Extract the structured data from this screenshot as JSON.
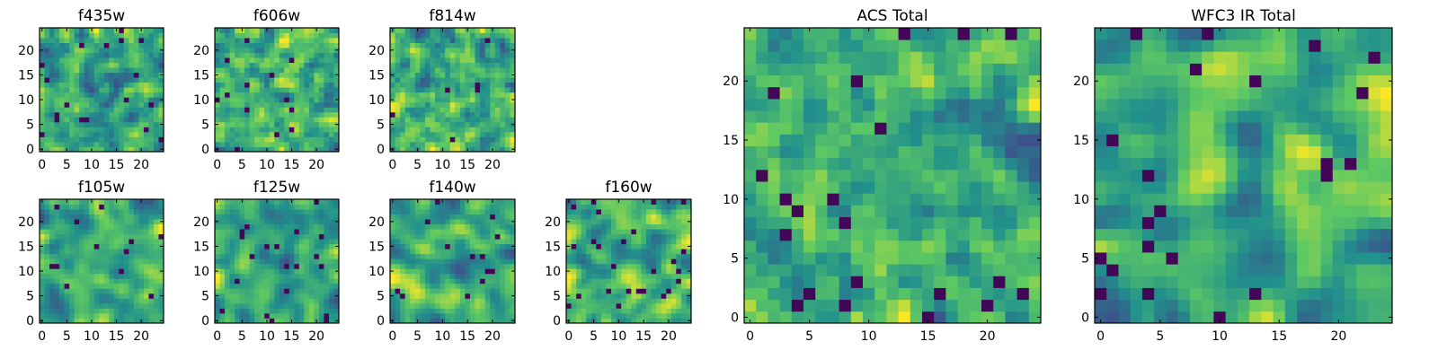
{
  "figure": {
    "colormap": "viridis",
    "colors": [
      "#440154",
      "#3b528b",
      "#21918c",
      "#5ec962",
      "#fde725"
    ],
    "noise_seed": 12345
  },
  "chart_data": [
    {
      "type": "heatmap",
      "title": "f435w",
      "grid": [
        25,
        25
      ],
      "xlim": [
        0,
        25
      ],
      "ylim": [
        0,
        25
      ],
      "xticks": [
        0,
        5,
        10,
        15,
        20
      ],
      "yticks": [
        0,
        5,
        10,
        15,
        20
      ],
      "smoothing": 0.2
    },
    {
      "type": "heatmap",
      "title": "f606w",
      "grid": [
        25,
        25
      ],
      "xlim": [
        0,
        25
      ],
      "ylim": [
        0,
        25
      ],
      "xticks": [
        0,
        5,
        10,
        15,
        20
      ],
      "yticks": [
        0,
        5,
        10,
        15,
        20
      ],
      "smoothing": 0.2
    },
    {
      "type": "heatmap",
      "title": "f814w",
      "grid": [
        25,
        25
      ],
      "xlim": [
        0,
        25
      ],
      "ylim": [
        0,
        25
      ],
      "xticks": [
        0,
        5,
        10,
        15,
        20
      ],
      "yticks": [
        0,
        5,
        10,
        15,
        20
      ],
      "smoothing": 0.2
    },
    {
      "type": "heatmap",
      "title": "f105w",
      "grid": [
        25,
        25
      ],
      "xlim": [
        0,
        25
      ],
      "ylim": [
        0,
        25
      ],
      "xticks": [
        0,
        5,
        10,
        15,
        20
      ],
      "yticks": [
        0,
        5,
        10,
        15,
        20
      ],
      "smoothing": 0.6
    },
    {
      "type": "heatmap",
      "title": "f125w",
      "grid": [
        25,
        25
      ],
      "xlim": [
        0,
        25
      ],
      "ylim": [
        0,
        25
      ],
      "xticks": [
        0,
        5,
        10,
        15,
        20
      ],
      "yticks": [
        0,
        5,
        10,
        15,
        20
      ],
      "smoothing": 0.6
    },
    {
      "type": "heatmap",
      "title": "f140w",
      "grid": [
        25,
        25
      ],
      "xlim": [
        0,
        25
      ],
      "ylim": [
        0,
        25
      ],
      "xticks": [
        0,
        5,
        10,
        15,
        20
      ],
      "yticks": [
        0,
        5,
        10,
        15,
        20
      ],
      "smoothing": 0.6
    },
    {
      "type": "heatmap",
      "title": "f160w",
      "grid": [
        25,
        25
      ],
      "xlim": [
        0,
        25
      ],
      "ylim": [
        0,
        25
      ],
      "xticks": [
        0,
        5,
        10,
        15,
        20
      ],
      "yticks": [
        0,
        5,
        10,
        15,
        20
      ],
      "smoothing": 0.6
    },
    {
      "type": "heatmap",
      "title": "ACS Total",
      "grid": [
        25,
        25
      ],
      "xlim": [
        0,
        25
      ],
      "ylim": [
        0,
        25
      ],
      "xticks": [
        0,
        5,
        10,
        15,
        20
      ],
      "yticks": [
        0,
        5,
        10,
        15,
        20
      ],
      "smoothing": 0.25
    },
    {
      "type": "heatmap",
      "title": "WFC3 IR Total",
      "grid": [
        25,
        25
      ],
      "xlim": [
        0,
        25
      ],
      "ylim": [
        0,
        25
      ],
      "xticks": [
        0,
        5,
        10,
        15,
        20
      ],
      "yticks": [
        0,
        5,
        10,
        15,
        20
      ],
      "smoothing": 0.65
    }
  ]
}
